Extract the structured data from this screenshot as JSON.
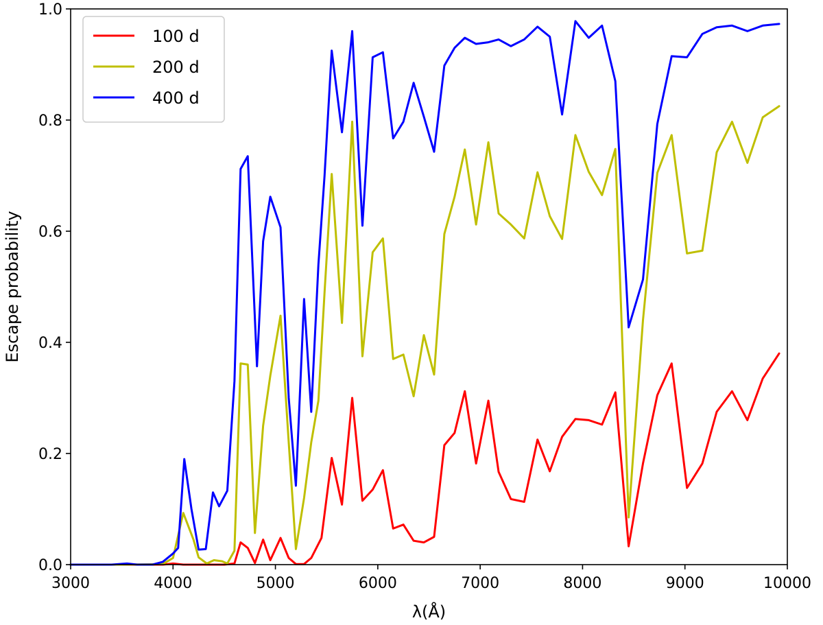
{
  "chart_data": {
    "type": "line",
    "title": "",
    "xlabel": "λ(Å)",
    "ylabel": "Escape probability",
    "xlim": [
      3000,
      10000
    ],
    "ylim": [
      0,
      1.0
    ],
    "xticks": [
      3000,
      4000,
      5000,
      6000,
      7000,
      8000,
      9000,
      10000
    ],
    "xtick_labels": [
      "3000",
      "4000",
      "5000",
      "6000",
      "7000",
      "8000",
      "9000",
      "10000"
    ],
    "yticks": [
      0,
      0.2,
      0.4,
      0.6,
      0.8,
      1.0
    ],
    "ytick_labels": [
      "0.0",
      "0.2",
      "0.4",
      "0.6",
      "0.8",
      "1.0"
    ],
    "grid": false,
    "legend_position": "top-left",
    "series": [
      {
        "name": "100 d",
        "color": "#ff0000",
        "x": [
          3000,
          3500,
          3900,
          4000,
          4100,
          4200,
          4300,
          4400,
          4500,
          4600,
          4660,
          4730,
          4800,
          4880,
          4950,
          5050,
          5130,
          5200,
          5280,
          5350,
          5450,
          5550,
          5650,
          5750,
          5850,
          5950,
          6050,
          6150,
          6250,
          6350,
          6450,
          6550,
          6650,
          6750,
          6850,
          6960,
          7080,
          7180,
          7300,
          7430,
          7560,
          7680,
          7800,
          7930,
          8060,
          8190,
          8320,
          8450,
          8590,
          8730,
          8870,
          9020,
          9170,
          9310,
          9460,
          9610,
          9760,
          9920
        ],
        "y": [
          0,
          0,
          0,
          0.002,
          0,
          0,
          0,
          0,
          0,
          0.002,
          0.04,
          0.03,
          0.003,
          0.045,
          0.008,
          0.048,
          0.012,
          0.001,
          0.001,
          0.012,
          0.048,
          0.192,
          0.108,
          0.3,
          0.115,
          0.135,
          0.17,
          0.065,
          0.072,
          0.043,
          0.04,
          0.05,
          0.215,
          0.237,
          0.312,
          0.182,
          0.295,
          0.167,
          0.118,
          0.113,
          0.225,
          0.168,
          0.23,
          0.262,
          0.26,
          0.252,
          0.31,
          0.033,
          0.182,
          0.305,
          0.362,
          0.138,
          0.182,
          0.275,
          0.312,
          0.26,
          0.335,
          0.38
        ]
      },
      {
        "name": "200 d",
        "color": "#bfbf00",
        "x": [
          3000,
          3500,
          3900,
          4000,
          4100,
          4200,
          4250,
          4330,
          4400,
          4480,
          4530,
          4600,
          4660,
          4730,
          4800,
          4880,
          4950,
          5050,
          5130,
          5200,
          5280,
          5350,
          5420,
          5480,
          5550,
          5650,
          5750,
          5850,
          5950,
          6050,
          6150,
          6250,
          6350,
          6450,
          6550,
          6650,
          6750,
          6850,
          6960,
          7080,
          7180,
          7300,
          7430,
          7560,
          7680,
          7800,
          7930,
          8060,
          8190,
          8320,
          8450,
          8590,
          8730,
          8870,
          9020,
          9170,
          9310,
          9460,
          9610,
          9760,
          9920
        ],
        "y": [
          0,
          0,
          0.001,
          0.012,
          0.093,
          0.045,
          0.013,
          0.002,
          0.008,
          0.006,
          0.002,
          0.025,
          0.362,
          0.36,
          0.057,
          0.25,
          0.34,
          0.448,
          0.22,
          0.028,
          0.12,
          0.22,
          0.295,
          0.49,
          0.703,
          0.435,
          0.797,
          0.375,
          0.562,
          0.587,
          0.37,
          0.378,
          0.303,
          0.413,
          0.342,
          0.595,
          0.662,
          0.747,
          0.612,
          0.76,
          0.632,
          0.612,
          0.587,
          0.706,
          0.627,
          0.586,
          0.773,
          0.707,
          0.665,
          0.748,
          0.085,
          0.44,
          0.705,
          0.773,
          0.56,
          0.565,
          0.742,
          0.797,
          0.723,
          0.805,
          0.825
        ]
      },
      {
        "name": "400 d",
        "color": "#0000ff",
        "x": [
          3000,
          3400,
          3550,
          3650,
          3800,
          3900,
          4000,
          4050,
          4110,
          4180,
          4250,
          4320,
          4390,
          4450,
          4530,
          4600,
          4660,
          4730,
          4820,
          4880,
          4950,
          5050,
          5130,
          5200,
          5280,
          5350,
          5420,
          5480,
          5550,
          5650,
          5750,
          5850,
          5950,
          6050,
          6150,
          6250,
          6350,
          6450,
          6550,
          6650,
          6750,
          6850,
          6960,
          7080,
          7180,
          7300,
          7430,
          7560,
          7680,
          7800,
          7930,
          8060,
          8190,
          8320,
          8450,
          8590,
          8730,
          8870,
          9020,
          9170,
          9310,
          9460,
          9610,
          9760,
          9920
        ],
        "y": [
          0,
          0,
          0.002,
          0,
          0,
          0.005,
          0.02,
          0.03,
          0.19,
          0.1,
          0.027,
          0.028,
          0.13,
          0.105,
          0.133,
          0.33,
          0.712,
          0.735,
          0.357,
          0.582,
          0.662,
          0.607,
          0.3,
          0.142,
          0.478,
          0.275,
          0.54,
          0.7,
          0.925,
          0.778,
          0.96,
          0.61,
          0.913,
          0.922,
          0.767,
          0.797,
          0.867,
          0.806,
          0.743,
          0.898,
          0.93,
          0.948,
          0.937,
          0.94,
          0.945,
          0.933,
          0.945,
          0.968,
          0.95,
          0.81,
          0.978,
          0.948,
          0.97,
          0.87,
          0.427,
          0.513,
          0.793,
          0.915,
          0.913,
          0.955,
          0.967,
          0.97,
          0.96,
          0.97,
          0.973
        ]
      }
    ]
  }
}
